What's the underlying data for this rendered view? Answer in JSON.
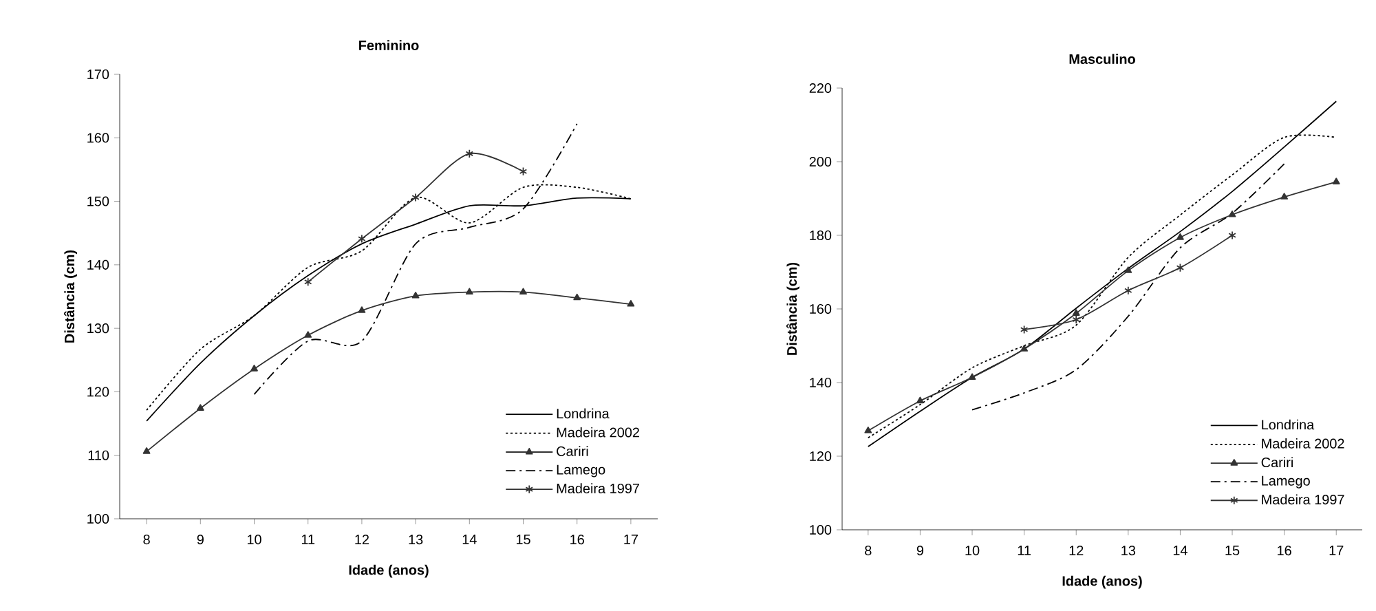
{
  "chart_data": [
    {
      "type": "line",
      "title": "Feminino",
      "xlabel": "Idade (anos)",
      "ylabel": "Distância (cm)",
      "x": [
        8,
        9,
        10,
        11,
        12,
        13,
        14,
        15,
        16,
        17
      ],
      "xlim": [
        7.5,
        17.5
      ],
      "xticks": [
        8,
        9,
        10,
        11,
        12,
        13,
        14,
        15,
        16,
        17
      ],
      "ylim": [
        100,
        170
      ],
      "yticks": [
        100,
        110,
        120,
        130,
        140,
        150,
        160,
        170
      ],
      "grid": false,
      "legend": "bottom right",
      "series": [
        {
          "name": "Londrina",
          "color": "#000000",
          "line_style": "solid",
          "marker": "none",
          "values": [
            115.4,
            124.5,
            132,
            138.3,
            143.3,
            146.4,
            149.3,
            149.3,
            150.5,
            150.4
          ]
        },
        {
          "name": "Madeira 2002",
          "color": "#000000",
          "line_style": "dotted",
          "marker": "none",
          "values": [
            117.1,
            126.7,
            132,
            139.6,
            142.2,
            150.6,
            146.6,
            152.2,
            152.2,
            150.4
          ]
        },
        {
          "name": "Cariri",
          "color": "#333333",
          "line_style": "solid",
          "marker": "triangle",
          "values": [
            110.6,
            117.4,
            123.6,
            128.9,
            132.8,
            135.1,
            135.7,
            135.7,
            134.8,
            133.8
          ]
        },
        {
          "name": "Lamego",
          "color": "#000000",
          "line_style": "dashed",
          "marker": "none",
          "x": [
            10,
            11,
            12,
            13,
            14,
            15,
            16
          ],
          "values": [
            119.6,
            128,
            128,
            143.3,
            145.9,
            148.8,
            162.2
          ]
        },
        {
          "name": "Madeira 1997",
          "color": "#333333",
          "line_style": "solid",
          "marker": "cross",
          "x": [
            11,
            12,
            13,
            14,
            15
          ],
          "values": [
            137.3,
            144.1,
            150.6,
            157.5,
            154.7
          ]
        }
      ]
    },
    {
      "type": "line",
      "title": "Masculino",
      "xlabel": "Idade (anos)",
      "ylabel": "Distância (cm)",
      "x": [
        8,
        9,
        10,
        11,
        12,
        13,
        14,
        15,
        16,
        17
      ],
      "xlim": [
        7.5,
        17.5
      ],
      "xticks": [
        8,
        9,
        10,
        11,
        12,
        13,
        14,
        15,
        16,
        17
      ],
      "ylim": [
        100,
        220
      ],
      "yticks": [
        100,
        120,
        140,
        160,
        180,
        200,
        220
      ],
      "grid": false,
      "legend": "bottom right",
      "series": [
        {
          "name": "Londrina",
          "color": "#000000",
          "line_style": "solid",
          "marker": "none",
          "values": [
            122.6,
            132.2,
            141.4,
            149.1,
            160.2,
            171,
            181,
            191.9,
            204,
            216.4
          ]
        },
        {
          "name": "Madeira 2002",
          "color": "#000000",
          "line_style": "dotted",
          "marker": "none",
          "values": [
            125,
            134,
            144,
            150,
            155.6,
            174,
            185.5,
            196.4,
            206.6,
            206.6
          ]
        },
        {
          "name": "Cariri",
          "color": "#333333",
          "line_style": "solid",
          "marker": "triangle",
          "values": [
            126.9,
            135,
            141.4,
            149.1,
            158.8,
            170.4,
            179.4,
            185.6,
            190.4,
            194.5
          ]
        },
        {
          "name": "Lamego",
          "color": "#000000",
          "line_style": "dashed",
          "marker": "none",
          "x": [
            10,
            11,
            12,
            13,
            14,
            15,
            16
          ],
          "values": [
            132.6,
            137.2,
            143.5,
            158,
            176.6,
            186,
            199.4
          ]
        },
        {
          "name": "Madeira 1997",
          "color": "#333333",
          "line_style": "solid",
          "marker": "cross",
          "x": [
            11,
            12,
            13,
            14,
            15
          ],
          "values": [
            154.4,
            157.1,
            165,
            171.2,
            180
          ]
        }
      ]
    }
  ]
}
